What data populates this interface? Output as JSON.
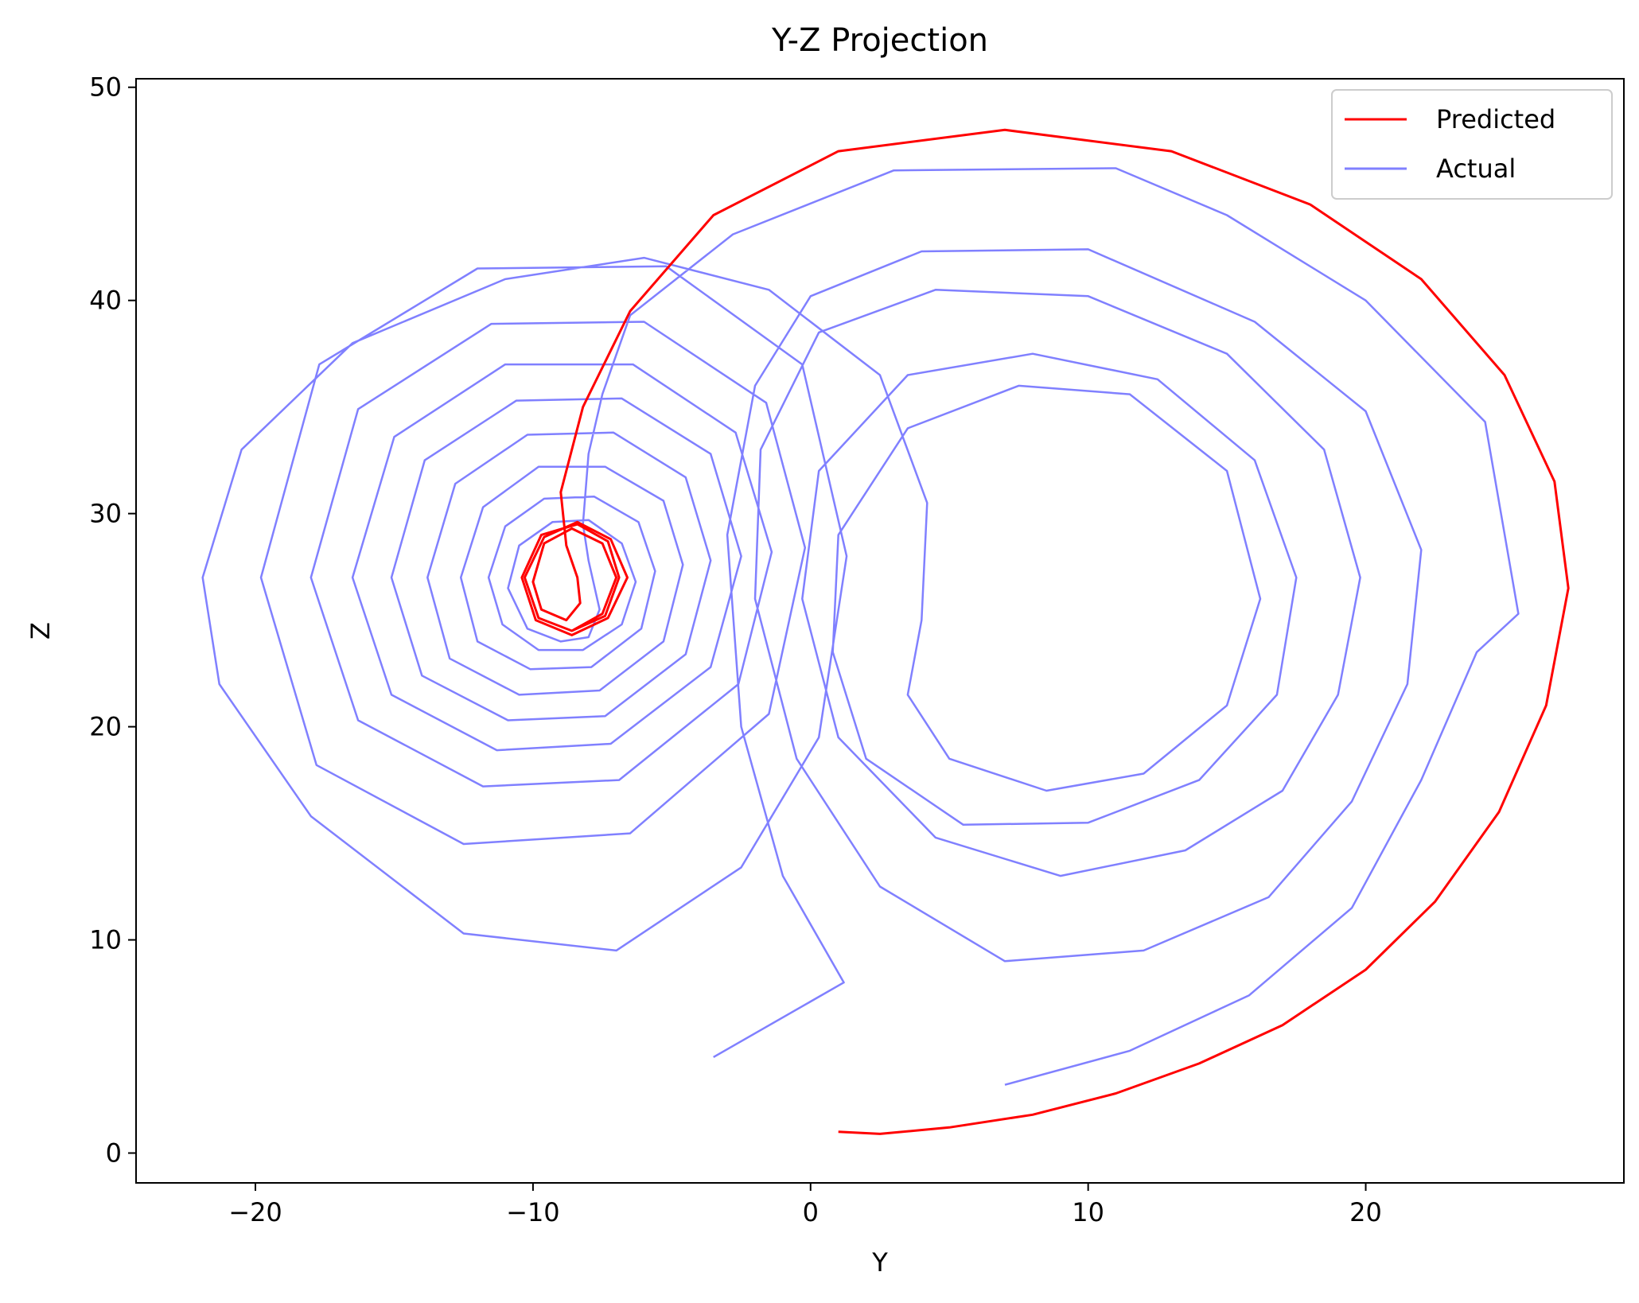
{
  "chart_data": {
    "type": "line",
    "title": "Y-Z Projection",
    "xlabel": "Y",
    "ylabel": "Z",
    "xlim": [
      -24.3,
      29.3
    ],
    "ylim": [
      -1.4,
      50.4
    ],
    "xticks": [
      -20,
      -10,
      0,
      10,
      20
    ],
    "yticks": [
      0,
      10,
      20,
      30,
      40,
      50
    ],
    "xtick_labels": [
      "−20",
      "−10",
      "0",
      "10",
      "20"
    ],
    "ytick_labels": [
      "0",
      "10",
      "20",
      "30",
      "40",
      "50"
    ],
    "grid": false,
    "legend": "top-right",
    "series": [
      {
        "name": "Predicted",
        "color": "#ff0000",
        "points": [
          [
            1.0,
            1.0
          ],
          [
            2.5,
            0.9
          ],
          [
            5.0,
            1.2
          ],
          [
            8.0,
            1.8
          ],
          [
            11.0,
            2.8
          ],
          [
            14.0,
            4.2
          ],
          [
            17.0,
            6.0
          ],
          [
            20.0,
            8.6
          ],
          [
            22.5,
            11.8
          ],
          [
            24.8,
            16.0
          ],
          [
            26.5,
            21.0
          ],
          [
            27.3,
            26.5
          ],
          [
            26.8,
            31.5
          ],
          [
            25.0,
            36.5
          ],
          [
            22.0,
            41.0
          ],
          [
            18.0,
            44.5
          ],
          [
            13.0,
            47.0
          ],
          [
            7.0,
            48.0
          ],
          [
            1.0,
            47.0
          ],
          [
            -3.5,
            44.0
          ],
          [
            -6.5,
            39.5
          ],
          [
            -8.2,
            35.0
          ],
          [
            -9.0,
            31.0
          ],
          [
            -8.8,
            28.5
          ],
          [
            -8.4,
            27.0
          ],
          [
            -8.3,
            25.8
          ],
          [
            -8.8,
            25.0
          ],
          [
            -9.7,
            25.5
          ],
          [
            -10.0,
            26.8
          ],
          [
            -9.6,
            28.6
          ],
          [
            -8.6,
            29.3
          ],
          [
            -7.5,
            28.6
          ],
          [
            -7.0,
            27.0
          ],
          [
            -7.5,
            25.3
          ],
          [
            -8.6,
            24.5
          ],
          [
            -9.8,
            25.1
          ],
          [
            -10.3,
            27.0
          ],
          [
            -9.6,
            28.9
          ],
          [
            -8.4,
            29.6
          ],
          [
            -7.2,
            28.8
          ],
          [
            -6.6,
            27.0
          ],
          [
            -7.3,
            25.1
          ],
          [
            -8.6,
            24.3
          ],
          [
            -9.9,
            25.0
          ],
          [
            -10.4,
            27.0
          ],
          [
            -9.7,
            29.0
          ],
          [
            -8.4,
            29.5
          ],
          [
            -7.3,
            28.7
          ],
          [
            -6.9,
            27.0
          ],
          [
            -7.4,
            25.2
          ],
          [
            -8.6,
            24.5
          ]
        ]
      },
      {
        "name": "Actual",
        "color": "#8080ff",
        "points": [
          [
            7.0,
            3.2
          ],
          [
            11.5,
            4.8
          ],
          [
            15.8,
            7.4
          ],
          [
            19.5,
            11.5
          ],
          [
            22.0,
            17.5
          ],
          [
            24.0,
            23.5
          ],
          [
            25.5,
            25.3
          ],
          [
            24.3,
            34.3
          ],
          [
            20.0,
            40.0
          ],
          [
            15.0,
            44.0
          ],
          [
            11.0,
            46.2
          ],
          [
            3.0,
            46.1
          ],
          [
            -2.8,
            43.1
          ],
          [
            -6.5,
            39.3
          ],
          [
            -7.5,
            35.6
          ],
          [
            -8.0,
            32.8
          ],
          [
            -8.2,
            29.5
          ],
          [
            -8.0,
            27.8
          ],
          [
            -7.6,
            25.5
          ],
          [
            -8.0,
            24.2
          ],
          [
            -9.0,
            24.0
          ],
          [
            -10.2,
            24.6
          ],
          [
            -10.9,
            26.5
          ],
          [
            -10.5,
            28.5
          ],
          [
            -9.3,
            29.6
          ],
          [
            -8.0,
            29.7
          ],
          [
            -6.8,
            28.6
          ],
          [
            -6.3,
            26.8
          ],
          [
            -6.8,
            24.8
          ],
          [
            -8.2,
            23.6
          ],
          [
            -9.8,
            23.6
          ],
          [
            -11.1,
            24.8
          ],
          [
            -11.6,
            27.0
          ],
          [
            -11.0,
            29.4
          ],
          [
            -9.6,
            30.7
          ],
          [
            -7.8,
            30.8
          ],
          [
            -6.2,
            29.6
          ],
          [
            -5.6,
            27.3
          ],
          [
            -6.1,
            24.6
          ],
          [
            -7.9,
            22.8
          ],
          [
            -10.1,
            22.7
          ],
          [
            -12.0,
            24.0
          ],
          [
            -12.6,
            27.0
          ],
          [
            -11.8,
            30.3
          ],
          [
            -9.8,
            32.2
          ],
          [
            -7.4,
            32.2
          ],
          [
            -5.3,
            30.6
          ],
          [
            -4.6,
            27.6
          ],
          [
            -5.3,
            24.0
          ],
          [
            -7.6,
            21.7
          ],
          [
            -10.5,
            21.5
          ],
          [
            -13.0,
            23.2
          ],
          [
            -13.8,
            27.0
          ],
          [
            -12.8,
            31.4
          ],
          [
            -10.2,
            33.7
          ],
          [
            -7.1,
            33.8
          ],
          [
            -4.5,
            31.7
          ],
          [
            -3.6,
            27.8
          ],
          [
            -4.5,
            23.4
          ],
          [
            -7.4,
            20.5
          ],
          [
            -10.9,
            20.3
          ],
          [
            -14.0,
            22.4
          ],
          [
            -15.1,
            27.0
          ],
          [
            -13.9,
            32.5
          ],
          [
            -10.6,
            35.3
          ],
          [
            -6.8,
            35.4
          ],
          [
            -3.6,
            32.8
          ],
          [
            -2.5,
            28.0
          ],
          [
            -3.6,
            22.8
          ],
          [
            -7.2,
            19.2
          ],
          [
            -11.3,
            18.9
          ],
          [
            -15.1,
            21.5
          ],
          [
            -16.5,
            27.0
          ],
          [
            -15.0,
            33.6
          ],
          [
            -11.0,
            37.0
          ],
          [
            -6.4,
            37.0
          ],
          [
            -2.7,
            33.8
          ],
          [
            -1.4,
            28.2
          ],
          [
            -2.6,
            22.0
          ],
          [
            -6.9,
            17.5
          ],
          [
            -11.8,
            17.2
          ],
          [
            -16.3,
            20.3
          ],
          [
            -18.0,
            27.0
          ],
          [
            -16.3,
            34.9
          ],
          [
            -11.5,
            38.9
          ],
          [
            -6.0,
            39.0
          ],
          [
            -1.6,
            35.2
          ],
          [
            -0.2,
            28.4
          ],
          [
            -1.5,
            20.6
          ],
          [
            -6.5,
            15.0
          ],
          [
            -12.5,
            14.5
          ],
          [
            -17.8,
            18.2
          ],
          [
            -19.8,
            27.0
          ],
          [
            -17.7,
            37.0
          ],
          [
            -12.0,
            41.5
          ],
          [
            -5.2,
            41.6
          ],
          [
            -0.3,
            37.0
          ],
          [
            1.3,
            28.0
          ],
          [
            0.3,
            19.5
          ],
          [
            -2.5,
            13.4
          ],
          [
            -7.0,
            9.5
          ],
          [
            -12.5,
            10.3
          ],
          [
            -18.0,
            15.8
          ],
          [
            -21.3,
            22.0
          ],
          [
            -21.9,
            27.0
          ],
          [
            -20.5,
            33.0
          ],
          [
            -16.5,
            38.0
          ],
          [
            -11.0,
            41.0
          ],
          [
            -6.0,
            42.0
          ],
          [
            -1.5,
            40.5
          ],
          [
            2.5,
            36.5
          ],
          [
            4.2,
            30.5
          ],
          [
            4.0,
            25.0
          ],
          [
            3.5,
            21.5
          ],
          [
            5.0,
            18.5
          ],
          [
            8.5,
            17.0
          ],
          [
            12.0,
            17.8
          ],
          [
            15.0,
            21.0
          ],
          [
            16.2,
            26.0
          ],
          [
            15.0,
            32.0
          ],
          [
            11.5,
            35.6
          ],
          [
            7.5,
            36.0
          ],
          [
            3.5,
            34.0
          ],
          [
            1.0,
            29.0
          ],
          [
            0.8,
            23.5
          ],
          [
            2.0,
            18.5
          ],
          [
            5.5,
            15.4
          ],
          [
            10.0,
            15.5
          ],
          [
            14.0,
            17.5
          ],
          [
            16.8,
            21.5
          ],
          [
            17.5,
            27.0
          ],
          [
            16.0,
            32.5
          ],
          [
            12.5,
            36.3
          ],
          [
            8.0,
            37.5
          ],
          [
            3.5,
            36.5
          ],
          [
            0.3,
            32.0
          ],
          [
            -0.3,
            26.0
          ],
          [
            1.0,
            19.5
          ],
          [
            4.5,
            14.8
          ],
          [
            9.0,
            13.0
          ],
          [
            13.5,
            14.2
          ],
          [
            17.0,
            17.0
          ],
          [
            19.0,
            21.5
          ],
          [
            19.8,
            27.0
          ],
          [
            18.5,
            33.0
          ],
          [
            15.0,
            37.5
          ],
          [
            10.0,
            40.2
          ],
          [
            4.5,
            40.5
          ],
          [
            0.3,
            38.5
          ],
          [
            -1.8,
            33.0
          ],
          [
            -2.0,
            26.0
          ],
          [
            -0.5,
            18.5
          ],
          [
            2.5,
            12.5
          ],
          [
            7.0,
            9.0
          ],
          [
            12.0,
            9.5
          ],
          [
            16.5,
            12.0
          ],
          [
            19.5,
            16.5
          ],
          [
            21.5,
            22.0
          ],
          [
            22.0,
            28.3
          ],
          [
            20.0,
            34.8
          ],
          [
            16.0,
            39.0
          ],
          [
            10.0,
            42.4
          ],
          [
            4.0,
            42.3
          ],
          [
            0.0,
            40.2
          ],
          [
            -2.0,
            36.0
          ],
          [
            -3.0,
            29.0
          ],
          [
            -2.5,
            20.0
          ],
          [
            -1.0,
            13.0
          ],
          [
            1.2,
            8.0
          ],
          [
            -3.5,
            4.5
          ]
        ]
      }
    ]
  }
}
